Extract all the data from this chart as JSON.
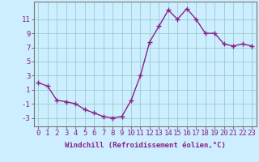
{
  "x": [
    0,
    1,
    2,
    3,
    4,
    5,
    6,
    7,
    8,
    9,
    10,
    11,
    12,
    13,
    14,
    15,
    16,
    17,
    18,
    19,
    20,
    21,
    22,
    23
  ],
  "y": [
    2.0,
    1.5,
    -0.5,
    -0.7,
    -1.0,
    -1.8,
    -2.3,
    -2.8,
    -3.0,
    -2.8,
    -0.5,
    3.0,
    7.8,
    10.0,
    12.3,
    11.0,
    12.5,
    11.0,
    9.0,
    9.0,
    7.5,
    7.2,
    7.5,
    7.2
  ],
  "line_color": "#882288",
  "marker": "+",
  "marker_size": 4,
  "background_color": "#cceeff",
  "grid_color": "#99cccc",
  "axis_color": "#882288",
  "xlabel": "Windchill (Refroidissement éolien,°C)",
  "xlabel_fontsize": 6.5,
  "ylabel_ticks": [
    -3,
    -1,
    1,
    3,
    5,
    7,
    9,
    11
  ],
  "xlim": [
    -0.5,
    23.5
  ],
  "ylim": [
    -4.2,
    13.5
  ],
  "tick_fontsize": 6.5,
  "line_width": 1.0,
  "spine_color": "#777777"
}
